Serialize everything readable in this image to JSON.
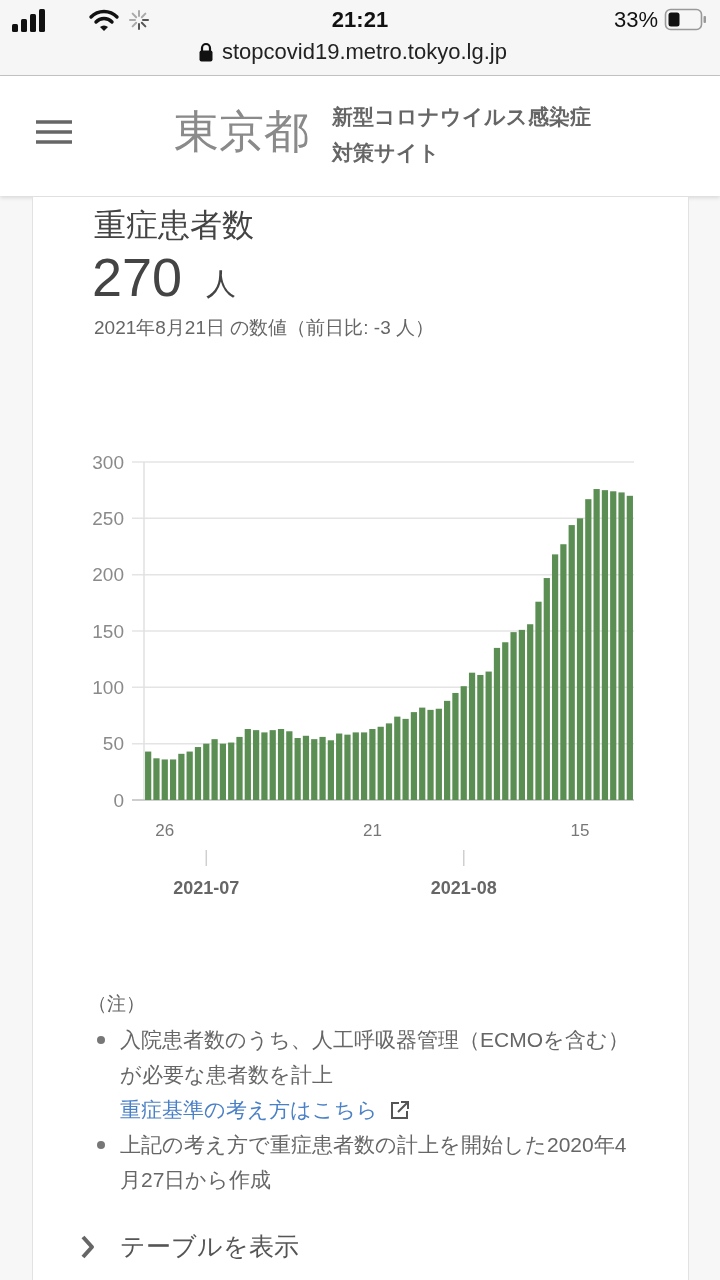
{
  "chart_data": {
    "type": "bar",
    "title": "重症患者数",
    "x": [
      "2021-06-24",
      "2021-06-25",
      "2021-06-26",
      "2021-06-27",
      "2021-06-28",
      "2021-06-29",
      "2021-06-30",
      "2021-07-01",
      "2021-07-02",
      "2021-07-03",
      "2021-07-04",
      "2021-07-05",
      "2021-07-06",
      "2021-07-07",
      "2021-07-08",
      "2021-07-09",
      "2021-07-10",
      "2021-07-11",
      "2021-07-12",
      "2021-07-13",
      "2021-07-14",
      "2021-07-15",
      "2021-07-16",
      "2021-07-17",
      "2021-07-18",
      "2021-07-19",
      "2021-07-20",
      "2021-07-21",
      "2021-07-22",
      "2021-07-23",
      "2021-07-24",
      "2021-07-25",
      "2021-07-26",
      "2021-07-27",
      "2021-07-28",
      "2021-07-29",
      "2021-07-30",
      "2021-07-31",
      "2021-08-01",
      "2021-08-02",
      "2021-08-03",
      "2021-08-04",
      "2021-08-05",
      "2021-08-06",
      "2021-08-07",
      "2021-08-08",
      "2021-08-09",
      "2021-08-10",
      "2021-08-11",
      "2021-08-12",
      "2021-08-13",
      "2021-08-14",
      "2021-08-15",
      "2021-08-16",
      "2021-08-17",
      "2021-08-18",
      "2021-08-19",
      "2021-08-20",
      "2021-08-21"
    ],
    "values": [
      43,
      37,
      36,
      36,
      41,
      43,
      47,
      50,
      54,
      50,
      51,
      56,
      63,
      62,
      60,
      62,
      63,
      61,
      55,
      57,
      54,
      56,
      53,
      59,
      58,
      60,
      60,
      63,
      65,
      68,
      74,
      72,
      78,
      82,
      80,
      81,
      88,
      95,
      101,
      113,
      111,
      114,
      135,
      140,
      149,
      151,
      156,
      176,
      197,
      218,
      227,
      244,
      250,
      267,
      276,
      275,
      274,
      273,
      270
    ],
    "color": "#5a8e52",
    "xlim": [
      "2021-06-23T12:00",
      "2021-08-21T12:00"
    ],
    "xticks": [
      {
        "value": "2021-06-26",
        "label": "26"
      },
      {
        "value": "2021-07-21",
        "label": "21"
      },
      {
        "value": "2021-08-15",
        "label": "15"
      }
    ],
    "x2lim": [
      "2021-06-23T12:00",
      "2021-08-21T12:00"
    ],
    "x2ticks": [
      {
        "value": "2021-07-01",
        "label": "2021-07"
      },
      {
        "value": "2021-08-01",
        "label": "2021-08"
      }
    ],
    "ylim": [
      0,
      300
    ],
    "yticks": [
      0,
      50,
      100,
      150,
      200,
      250,
      300
    ],
    "grid": "y",
    "annotations": [
      "21:21",
      "33%",
      "stopcovid19.metro.tokyo.lg.jp",
      "東京都",
      "新型コロナウイルス感染症対策サイト",
      "270",
      "人",
      "2021年8月21日 の数値（前日比: -3 人）",
      "（注）",
      "入院患者数のうち、人工呼吸器管理（ECMOを含む）が必要な患者数を計上",
      "重症基準の考え方はこちら",
      "上記の考え方で重症患者数の計上を開始した2020年4月27日から作成",
      "テーブルを表示"
    ]
  }
}
